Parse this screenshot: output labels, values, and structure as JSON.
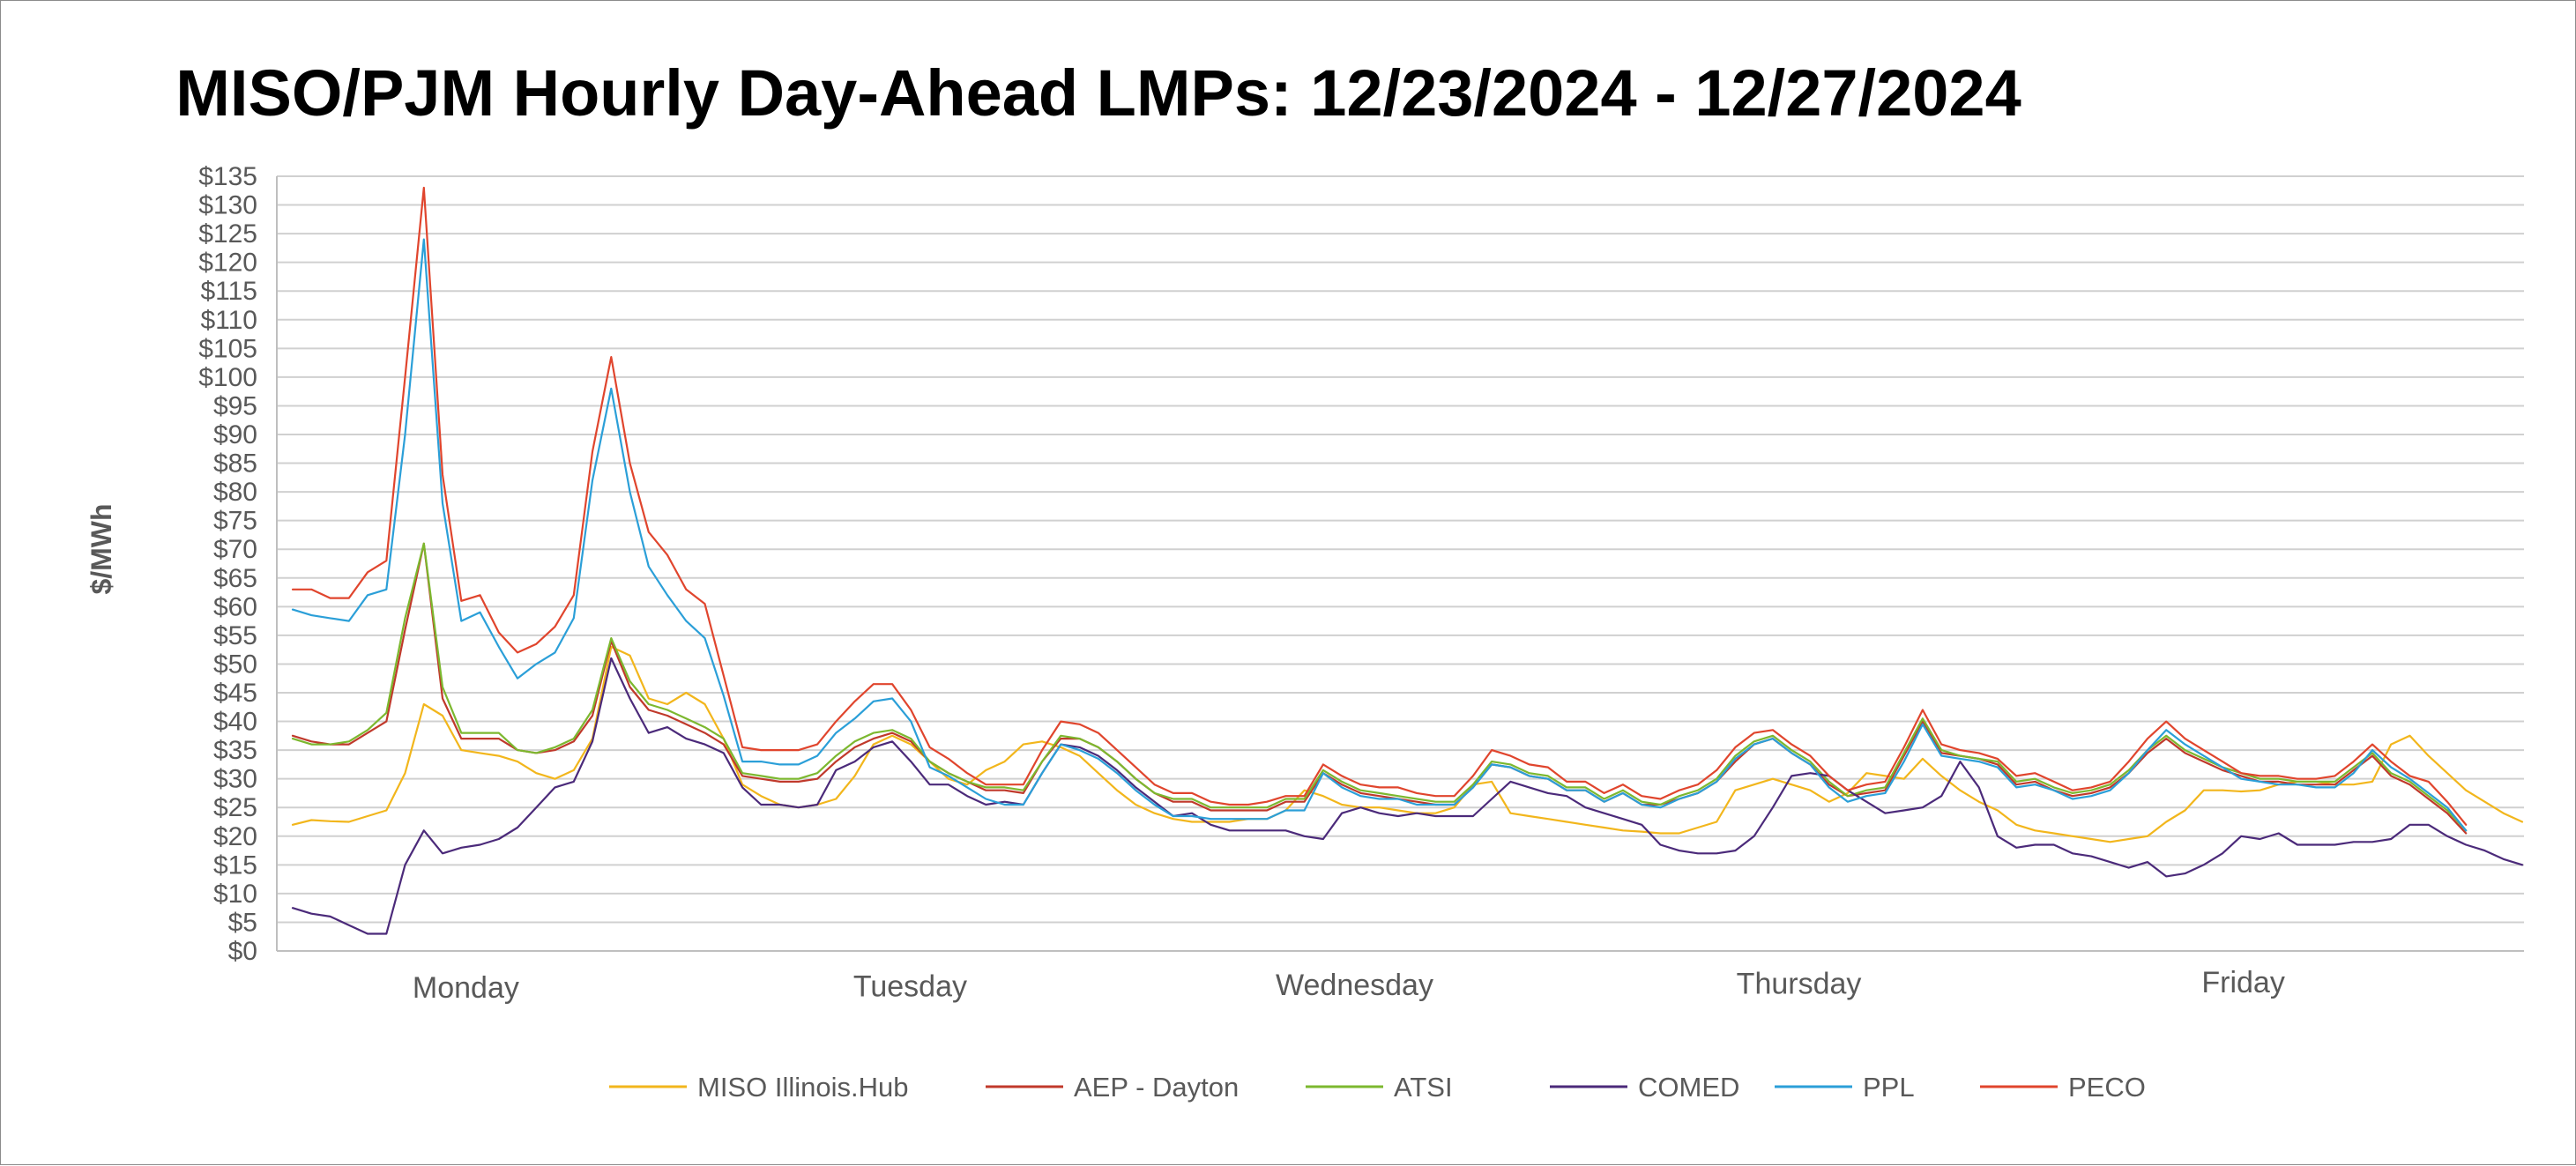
{
  "chart_data": {
    "type": "line",
    "title": "MISO/PJM Hourly Day-Ahead LMPs: 12/23/2024 - 12/27/2024",
    "ylabel": "$/MWh",
    "xlabel": "",
    "ylim": [
      0,
      135
    ],
    "y_ticks": [
      "$0",
      "$5",
      "$10",
      "$15",
      "$20",
      "$25",
      "$30",
      "$35",
      "$40",
      "$45",
      "$50",
      "$55",
      "$60",
      "$65",
      "$70",
      "$75",
      "$80",
      "$85",
      "$90",
      "$95",
      "$100",
      "$105",
      "$110",
      "$115",
      "$120",
      "$125",
      "$130",
      "$135"
    ],
    "x_category_labels": [
      "Monday",
      "Tuesday",
      "Wednesday",
      "Thursday",
      "Friday"
    ],
    "points_per_series": 120,
    "grid": true,
    "legend_position": "bottom",
    "series": [
      {
        "name": "MISO Illinois.Hub",
        "color": "#f2b61c",
        "values": [
          22,
          22.8,
          22.6,
          22.5,
          23.5,
          24.5,
          31,
          43,
          41,
          35,
          34.5,
          34,
          33,
          31,
          30,
          31.5,
          37,
          53,
          51.5,
          44,
          43,
          45,
          43,
          37,
          29,
          27,
          25.5,
          25,
          25.5,
          26.5,
          30.5,
          36,
          37.5,
          36,
          33,
          30,
          29,
          31.5,
          33,
          36,
          36.5,
          35.5,
          34,
          31,
          28,
          25.5,
          24,
          23,
          22.5,
          22.5,
          22.5,
          23,
          23,
          24.5,
          28,
          27,
          25.5,
          25,
          25,
          24.5,
          24,
          24,
          25,
          29,
          29.5,
          24,
          23.5,
          23,
          22.5,
          22,
          21.5,
          21,
          20.8,
          20.5,
          20.5,
          21.5,
          22.5,
          28,
          29,
          30,
          29,
          28,
          26,
          27.5,
          31,
          30.5,
          30,
          33.5,
          30.5,
          28,
          26,
          24.5,
          22,
          21,
          20.5,
          20,
          19.5,
          19,
          19.5,
          20,
          22.5,
          24.5,
          28,
          28,
          27.8,
          28,
          29,
          29.5,
          29.5,
          29,
          29,
          29.5,
          36,
          37.5,
          34,
          31,
          28,
          26,
          24,
          22.5
        ]
      },
      {
        "name": "AEP - Dayton",
        "color": "#c0392b",
        "values": [
          37.5,
          36.5,
          36,
          36,
          38,
          40,
          56,
          71,
          44,
          37,
          37,
          37,
          35,
          34.5,
          35,
          36.5,
          41,
          54,
          46,
          42,
          41,
          39.5,
          38,
          36,
          30.5,
          30,
          29.5,
          29.5,
          30,
          33,
          35.5,
          37,
          38,
          36.5,
          33,
          31,
          29.5,
          28,
          28,
          27.5,
          33,
          37,
          37,
          35.5,
          33,
          30,
          27.5,
          26,
          26,
          24.5,
          24.5,
          24.5,
          24.5,
          26,
          26,
          31,
          29,
          27.5,
          27,
          26.5,
          26,
          25.5,
          25.5,
          28.5,
          32.5,
          32,
          30.5,
          30,
          28,
          28,
          26,
          27.5,
          25.5,
          25.5,
          26.5,
          27.5,
          29.5,
          33,
          36,
          37,
          34.5,
          32.5,
          29,
          27,
          27.5,
          28,
          34,
          40,
          34.5,
          34,
          33.5,
          32.5,
          29,
          29.5,
          28,
          27,
          27.5,
          28.5,
          31,
          34.5,
          37,
          34.5,
          33,
          31.5,
          30.5,
          29.5,
          29.5,
          29,
          29,
          29,
          31.5,
          34,
          30.5,
          29,
          26.5,
          24,
          20.5
        ]
      },
      {
        "name": "ATSI",
        "color": "#7cb82f",
        "values": [
          37,
          36,
          36,
          36.5,
          38.5,
          41.5,
          58,
          71,
          46,
          38,
          38,
          38,
          35,
          34.5,
          35.5,
          37,
          42,
          54.5,
          47,
          43,
          42,
          40.5,
          39,
          37,
          31,
          30.5,
          30,
          30,
          31,
          34,
          36.5,
          38,
          38.5,
          37,
          33,
          31,
          29.5,
          28.5,
          28.5,
          28,
          33,
          37.5,
          37,
          35.5,
          33,
          30,
          27.5,
          26.5,
          26.5,
          25,
          25,
          25,
          25,
          26.5,
          26.5,
          31.5,
          29.5,
          28,
          27.5,
          27,
          26.5,
          26,
          26,
          29,
          33,
          32.5,
          31,
          30.5,
          28.5,
          28.5,
          26.5,
          28,
          26,
          25.5,
          27,
          28,
          30,
          34,
          36.5,
          37.5,
          35,
          33,
          29.5,
          27,
          28,
          28.5,
          34.5,
          40.5,
          35,
          34,
          33.5,
          33,
          29.5,
          30,
          28.5,
          27.5,
          28,
          29,
          31.5,
          35,
          37.5,
          35,
          33.5,
          32,
          31,
          30,
          30,
          29.5,
          29.5,
          29.5,
          32,
          34.5,
          31,
          29.5,
          27,
          24.5,
          21
        ]
      },
      {
        "name": "COMED",
        "color": "#4b2a7a",
        "values": [
          7.5,
          6.5,
          6,
          4.5,
          3,
          3,
          15,
          21,
          17,
          18,
          18.5,
          19.5,
          21.5,
          25,
          28.5,
          29.5,
          36.5,
          51,
          44,
          38,
          39,
          37,
          36,
          34.5,
          28.5,
          25.5,
          25.5,
          25,
          25.5,
          31.5,
          33,
          35.5,
          36.5,
          33,
          29,
          29,
          27,
          25.5,
          26,
          25.5,
          31,
          36,
          35.5,
          34,
          31.5,
          28.5,
          26,
          23.5,
          24,
          22,
          21,
          21,
          21,
          21,
          20,
          19.5,
          24,
          25,
          24,
          23.5,
          24,
          23.5,
          23.5,
          23.5,
          26.5,
          29.5,
          28.5,
          27.5,
          27,
          25,
          24,
          23,
          22,
          18.5,
          17.5,
          17,
          17,
          17.5,
          20,
          25,
          30.5,
          31,
          30.5,
          28,
          26,
          24,
          24.5,
          25,
          27,
          33,
          28.5,
          20,
          18,
          18.5,
          18.5,
          17,
          16.5,
          15.5,
          14.5,
          15.5,
          13,
          13.5,
          15,
          17,
          20,
          19.5,
          20.5,
          18.5,
          18.5,
          18.5,
          19,
          19,
          19.5,
          22,
          22,
          20,
          18.5,
          17.5,
          16,
          15
        ]
      },
      {
        "name": "PPL",
        "color": "#2b9fd8",
        "values": [
          59.5,
          58.5,
          58,
          57.5,
          62,
          63,
          90,
          124,
          78,
          57.5,
          59,
          53,
          47.5,
          50,
          52,
          58,
          82,
          98,
          80,
          67,
          62,
          57.5,
          54.5,
          44.5,
          33,
          33,
          32.5,
          32.5,
          34,
          38,
          40.5,
          43.5,
          44,
          40,
          32,
          30.5,
          28.5,
          26.5,
          25.5,
          25.5,
          31,
          36,
          35,
          33.5,
          31,
          28,
          25.5,
          23.5,
          23.5,
          23,
          23,
          23,
          23,
          24.5,
          24.5,
          31,
          28.5,
          27,
          26.5,
          26.5,
          25.5,
          25.5,
          25.5,
          28.5,
          32.5,
          32,
          30.5,
          30,
          28,
          28,
          26,
          27.5,
          25.5,
          25,
          26.5,
          27.5,
          29.5,
          33.5,
          36,
          37,
          34.5,
          32.5,
          28.5,
          26,
          27,
          27.5,
          33,
          39.5,
          34,
          33.5,
          33,
          32,
          28.5,
          29,
          28,
          26.5,
          27,
          28,
          31,
          35,
          38.5,
          36,
          34,
          32,
          30,
          29.5,
          29,
          29,
          28.5,
          28.5,
          31,
          35,
          32,
          30,
          27.5,
          25,
          21
        ]
      },
      {
        "name": "PECO",
        "color": "#e0452d",
        "values": [
          63,
          63,
          61.5,
          61.5,
          66,
          68,
          100,
          133,
          83,
          61,
          62,
          55.5,
          52,
          53.5,
          56.5,
          62,
          87,
          103.5,
          85,
          73,
          69,
          63,
          60.5,
          48,
          35.5,
          35,
          35,
          35,
          36,
          40,
          43.5,
          46.5,
          46.5,
          42,
          35.5,
          33.5,
          31,
          29,
          29,
          29,
          35,
          40,
          39.5,
          38,
          35,
          32,
          29,
          27.5,
          27.5,
          26,
          25.5,
          25.5,
          26,
          27,
          27,
          32.5,
          30.5,
          29,
          28.5,
          28.5,
          27.5,
          27,
          27,
          30.5,
          35,
          34,
          32.5,
          32,
          29.5,
          29.5,
          27.5,
          29,
          27,
          26.5,
          28,
          29,
          31.5,
          35.5,
          38,
          38.5,
          36,
          34,
          30.5,
          28,
          29,
          29.5,
          35.5,
          42,
          36,
          35,
          34.5,
          33.5,
          30.5,
          31,
          29.5,
          28,
          28.5,
          29.5,
          33,
          37,
          40,
          37,
          35,
          33,
          31,
          30.5,
          30.5,
          30,
          30,
          30.5,
          33,
          36,
          33,
          30.5,
          29.5,
          26,
          22
        ]
      }
    ]
  }
}
